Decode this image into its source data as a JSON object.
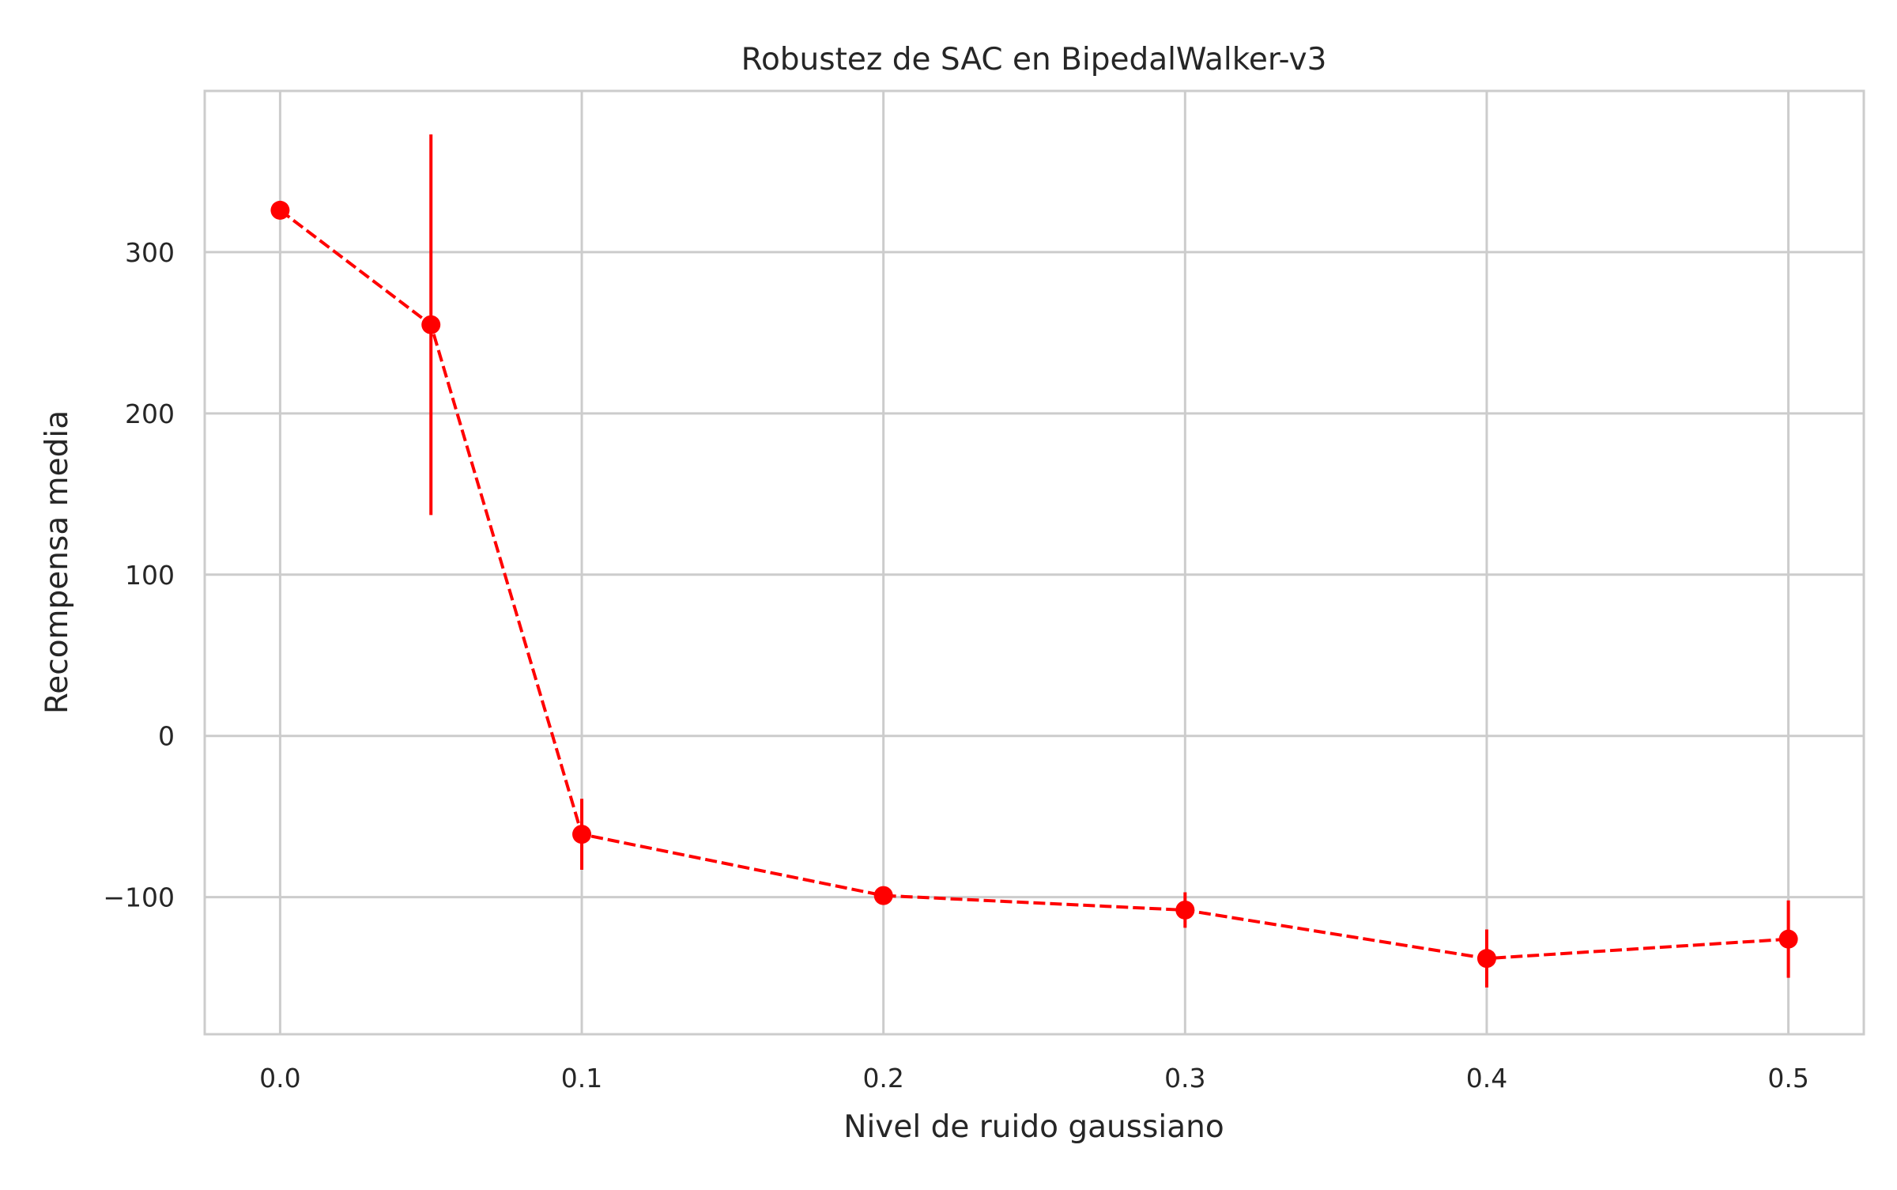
{
  "chart_data": {
    "type": "line",
    "title": "Robustez de SAC en BipedalWalker-v3",
    "xlabel": "Nivel de ruido gaussiano",
    "ylabel": "Recompensa media",
    "xlim": [
      -0.025,
      0.525
    ],
    "ylim": [
      -185,
      400
    ],
    "xticks": [
      0.0,
      0.1,
      0.2,
      0.3,
      0.4,
      0.5
    ],
    "xtick_labels": [
      "0.0",
      "0.1",
      "0.2",
      "0.3",
      "0.4",
      "0.5"
    ],
    "yticks": [
      -100,
      0,
      100,
      200,
      300
    ],
    "ytick_labels": [
      "−100",
      "0",
      "100",
      "200",
      "300"
    ],
    "grid": true,
    "legend": "none",
    "series": [
      {
        "color": "#ff0000",
        "line_style": "dashed",
        "marker": "circle",
        "x": [
          0.0,
          0.05,
          0.1,
          0.2,
          0.3,
          0.4,
          0.5
        ],
        "y": [
          326,
          255,
          -61,
          -99,
          -108,
          -138,
          -126
        ],
        "error": [
          2,
          118,
          22,
          4,
          11,
          18,
          24
        ]
      }
    ]
  }
}
